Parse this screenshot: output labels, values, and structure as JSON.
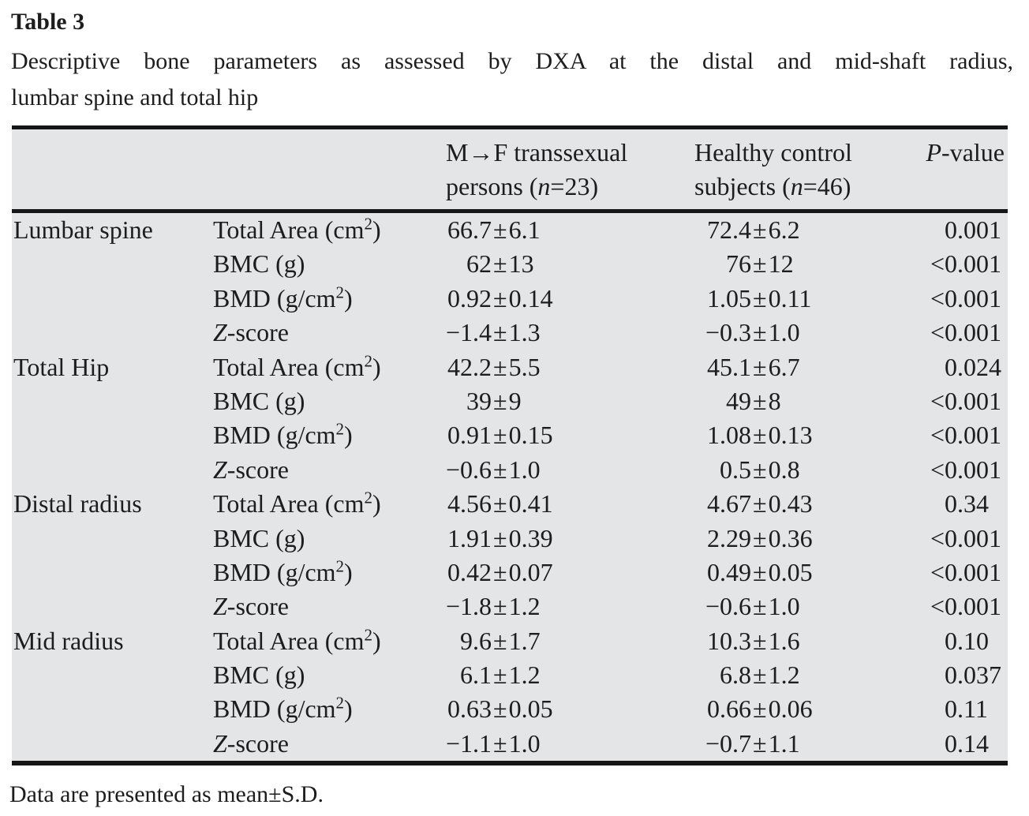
{
  "title": {
    "label": "Table 3",
    "caption_line1": "Descriptive bone parameters as assessed by DXA at the distal and mid-shaft radius,",
    "caption_line2": "lumbar spine and total hip"
  },
  "header": {
    "col3": {
      "line1": "M→F transsexual",
      "line2_pre": "persons (",
      "line2_it": "n",
      "line2_post": "=23)"
    },
    "col4": {
      "line1": "Healthy control",
      "line2_pre": "subjects (",
      "line2_it": "n",
      "line2_post": "=46)"
    },
    "col5": {
      "it": "P",
      "rest": "-value"
    }
  },
  "table": {
    "rows": [
      {
        "region": "Lumbar spine",
        "param": {
          "it": "",
          "t1": "Total Area (cm",
          "sup": "2",
          "t2": ")"
        },
        "v1": "66.7±6.1",
        "v2": "72.4±6.2",
        "p": "0.001"
      },
      {
        "region": "",
        "param": {
          "it": "",
          "t1": "BMC (g)",
          "sup": "",
          "t2": ""
        },
        "v1": "62±13",
        "v2": "76±12",
        "p": "<0.001"
      },
      {
        "region": "",
        "param": {
          "it": "",
          "t1": "BMD (g/cm",
          "sup": "2",
          "t2": ")"
        },
        "v1": "0.92±0.14",
        "v2": "1.05±0.11",
        "p": "<0.001"
      },
      {
        "region": "",
        "param": {
          "it": "Z",
          "t1": "-score",
          "sup": "",
          "t2": ""
        },
        "v1": "−1.4±1.3",
        "v2": "−0.3±1.0",
        "p": "<0.001"
      },
      {
        "region": "Total Hip",
        "param": {
          "it": "",
          "t1": "Total Area (cm",
          "sup": "2",
          "t2": ")"
        },
        "v1": "42.2±5.5",
        "v2": "45.1±6.7",
        "p": "0.024"
      },
      {
        "region": "",
        "param": {
          "it": "",
          "t1": "BMC (g)",
          "sup": "",
          "t2": ""
        },
        "v1": "39±9",
        "v2": "49±8",
        "p": "<0.001"
      },
      {
        "region": "",
        "param": {
          "it": "",
          "t1": "BMD (g/cm",
          "sup": "2",
          "t2": ")"
        },
        "v1": "0.91±0.15",
        "v2": "1.08±0.13",
        "p": "<0.001"
      },
      {
        "region": "",
        "param": {
          "it": "Z",
          "t1": "-score",
          "sup": "",
          "t2": ""
        },
        "v1": "−0.6±1.0",
        "v2": "0.5±0.8",
        "p": "<0.001"
      },
      {
        "region": "Distal radius",
        "param": {
          "it": "",
          "t1": "Total Area (cm",
          "sup": "2",
          "t2": ")"
        },
        "v1": "4.56±0.41",
        "v2": "4.67±0.43",
        "p": "0.34"
      },
      {
        "region": "",
        "param": {
          "it": "",
          "t1": "BMC (g)",
          "sup": "",
          "t2": ""
        },
        "v1": "1.91±0.39",
        "v2": "2.29±0.36",
        "p": "<0.001"
      },
      {
        "region": "",
        "param": {
          "it": "",
          "t1": "BMD (g/cm",
          "sup": "2",
          "t2": ")"
        },
        "v1": "0.42±0.07",
        "v2": "0.49±0.05",
        "p": "<0.001"
      },
      {
        "region": "",
        "param": {
          "it": "Z",
          "t1": "-score",
          "sup": "",
          "t2": ""
        },
        "v1": "−1.8±1.2",
        "v2": "−0.6±1.0",
        "p": "<0.001"
      },
      {
        "region": "Mid radius",
        "param": {
          "it": "",
          "t1": "Total Area (cm",
          "sup": "2",
          "t2": ")"
        },
        "v1": "9.6±1.7",
        "v2": "10.3±1.6",
        "p": "0.10"
      },
      {
        "region": "",
        "param": {
          "it": "",
          "t1": "BMC (g)",
          "sup": "",
          "t2": ""
        },
        "v1": "6.1±1.2",
        "v2": "6.8±1.2",
        "p": "0.037"
      },
      {
        "region": "",
        "param": {
          "it": "",
          "t1": "BMD (g/cm",
          "sup": "2",
          "t2": ")"
        },
        "v1": "0.63±0.05",
        "v2": "0.66±0.06",
        "p": "0.11"
      },
      {
        "region": "",
        "param": {
          "it": "Z",
          "t1": "-score",
          "sup": "",
          "t2": ""
        },
        "v1": "−1.1±1.0",
        "v2": "−0.7±1.1",
        "p": "0.14"
      }
    ]
  },
  "footnote": "Data are presented as mean±S.D.",
  "colors": {
    "table_background": "#e4e5e7",
    "rule": "#161616",
    "text": "#1d1d1d",
    "page_background": "#ffffff"
  }
}
